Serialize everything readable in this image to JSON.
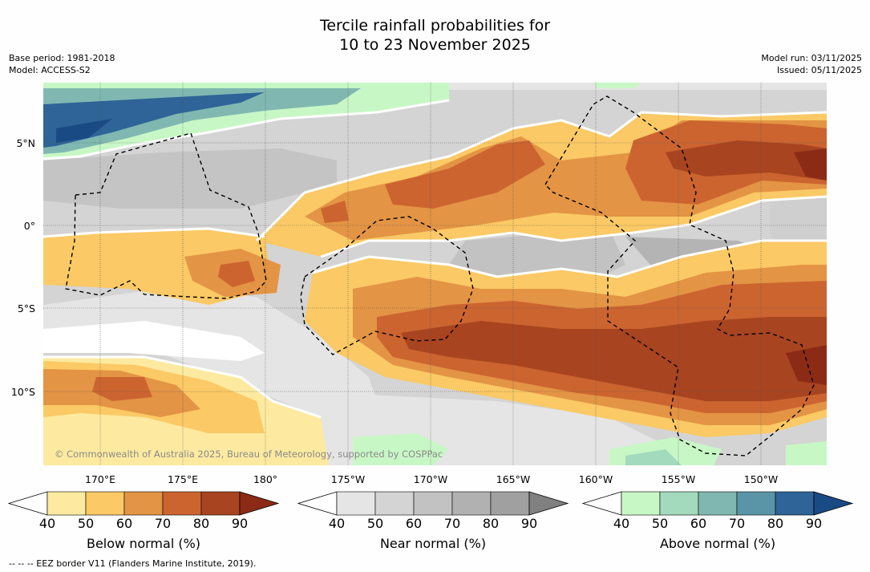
{
  "header": {
    "title_line1": "Tercile rainfall probabilities for",
    "title_line2": "10 to 23 November 2025",
    "base_period": "Base period: 1981-2018",
    "model": "Model: ACCESS-S2",
    "model_run": "Model run: 03/11/2025",
    "issued": "Issued: 05/11/2025"
  },
  "map": {
    "lat_labels": [
      "5°N",
      "0°",
      "5°S",
      "10°S"
    ],
    "lon_labels": [
      "170°E",
      "175°E",
      "180°",
      "175°W",
      "170°W",
      "165°W",
      "160°W",
      "155°W",
      "150°W"
    ],
    "copyright": "© Commonwealth of Australia 2025, Bureau of Meteorology, supported by COSPPac"
  },
  "colorbars": [
    {
      "title": "Below normal (%)",
      "ticks": [
        "40",
        "50",
        "60",
        "70",
        "80",
        "90"
      ],
      "colors": [
        "#fdeaa0",
        "#fbc965",
        "#e39444",
        "#cc6430",
        "#a8441f",
        "#8b2b16"
      ]
    },
    {
      "title": "Near normal (%)",
      "ticks": [
        "40",
        "50",
        "60",
        "70",
        "80",
        "90"
      ],
      "colors": [
        "#e5e5e5",
        "#d4d4d4",
        "#c2c2c2",
        "#b1b1b1",
        "#a0a0a0",
        "#808080"
      ]
    },
    {
      "title": "Above normal (%)",
      "ticks": [
        "40",
        "50",
        "60",
        "70",
        "80",
        "90"
      ],
      "colors": [
        "#c8f7c6",
        "#a3d9bd",
        "#80b8b1",
        "#5a95a7",
        "#2e6497",
        "#1a4a84"
      ]
    }
  ],
  "footer": {
    "legend_note": "--  --  -- EEZ border V11 (Flanders Marine Institute, 2019)."
  },
  "colors": {
    "white": "#ffffff",
    "gridline": "#555555"
  }
}
